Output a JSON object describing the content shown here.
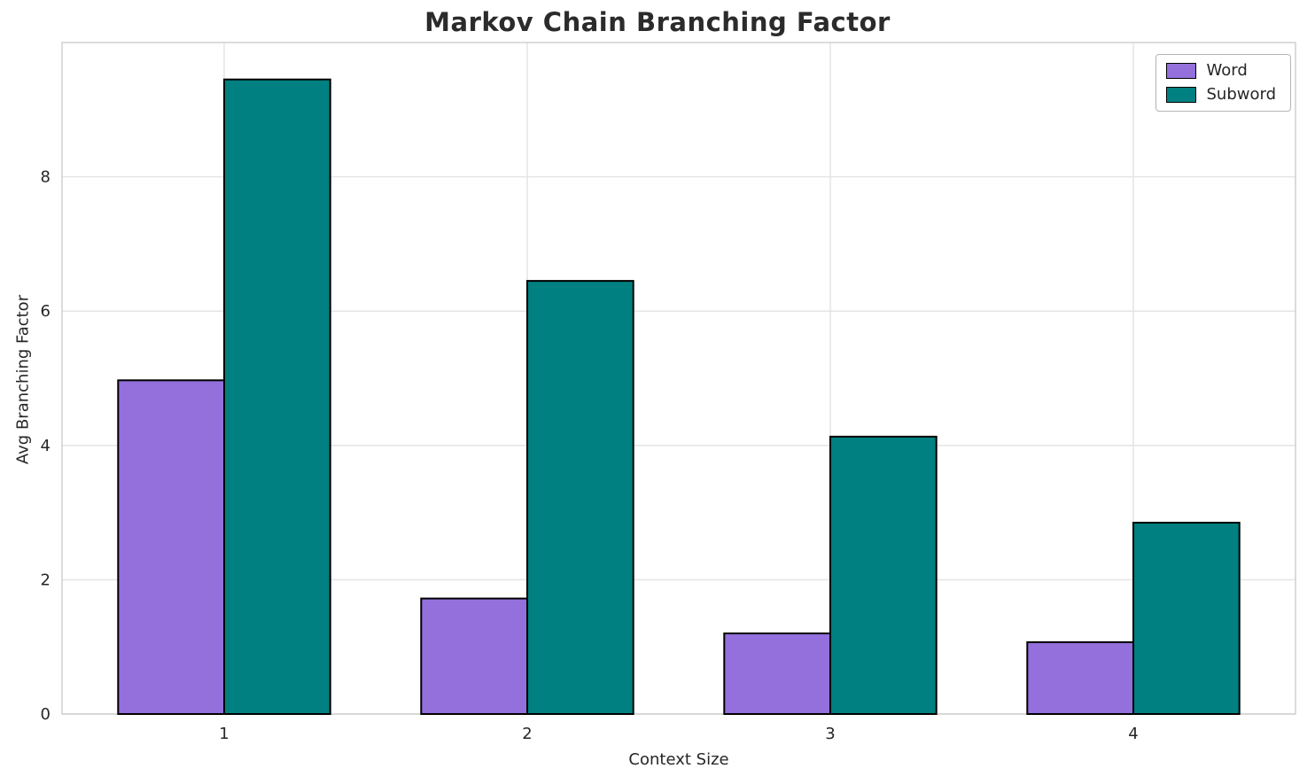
{
  "chart_data": {
    "type": "bar",
    "title": "Markov Chain Branching Factor",
    "xlabel": "Context Size",
    "ylabel": "Avg Branching Factor",
    "categories": [
      "1",
      "2",
      "3",
      "4"
    ],
    "series": [
      {
        "name": "Word",
        "color": "#9370db",
        "values": [
          4.97,
          1.72,
          1.2,
          1.07
        ]
      },
      {
        "name": "Subword",
        "color": "#008080",
        "values": [
          9.45,
          6.45,
          4.13,
          2.85
        ]
      }
    ],
    "ylim": [
      0,
      10
    ],
    "yticks": [
      0,
      2,
      4,
      6,
      8
    ],
    "grid": true,
    "legend_position": "upper right",
    "bar_edge_color": "#000000",
    "grid_color": "#e2e2e2",
    "spine_color": "#d0d0d0",
    "text_color": "#262626"
  }
}
